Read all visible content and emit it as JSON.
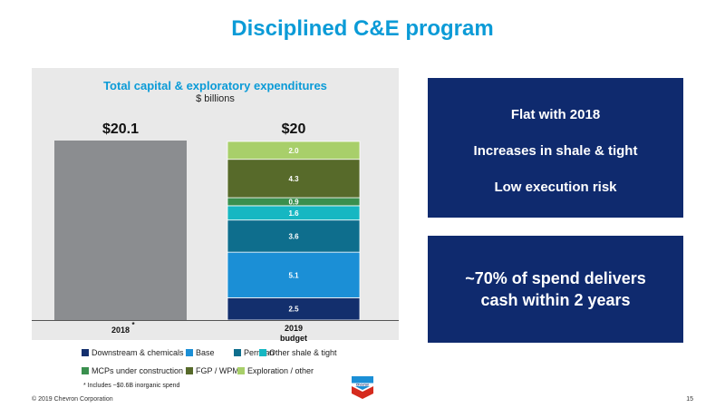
{
  "page": {
    "title": "Disciplined C&E program",
    "copyright": "© 2019 Chevron Corporation",
    "page_number": "15",
    "logo_text": "Chevron"
  },
  "chart_data": {
    "type": "bar",
    "title": "Total capital & exploratory expenditures",
    "subtitle": "$ billions",
    "categories": [
      "2018",
      "2019 budget"
    ],
    "category_marks": [
      "*",
      ""
    ],
    "totals": [
      "$20.1",
      "$20"
    ],
    "ylim": [
      0,
      20.1
    ],
    "bar_2018": {
      "value": 20.1,
      "color": "#8b8d90"
    },
    "series": [
      {
        "name": "Downstream & chemicals",
        "values": [
          null,
          2.5
        ],
        "label": "2.5",
        "color": "#132f6d"
      },
      {
        "name": "Base",
        "values": [
          null,
          5.1
        ],
        "label": "5.1",
        "color": "#1b8fd6"
      },
      {
        "name": "Permian",
        "values": [
          null,
          3.6
        ],
        "label": "3.6",
        "color": "#0e6e8d"
      },
      {
        "name": "Other shale & tight",
        "values": [
          null,
          1.6
        ],
        "label": "1.6",
        "color": "#16b7c2"
      },
      {
        "name": "MCPs under construction",
        "values": [
          null,
          0.9
        ],
        "label": "0.9",
        "color": "#3a8f4e"
      },
      {
        "name": "FGP / WPMP",
        "values": [
          null,
          4.3
        ],
        "label": "4.3",
        "color": "#576a2a"
      },
      {
        "name": "Exploration / other",
        "values": [
          null,
          2.0
        ],
        "label": "2.0",
        "color": "#a8cf6a"
      }
    ],
    "legend_placement": "bottom",
    "footnote": "* Includes ~$0.6B inorganic spend"
  },
  "callouts": {
    "box1": [
      "Flat with 2018",
      "Increases in shale & tight",
      "Low execution risk"
    ],
    "box2": [
      "~70% of spend delivers",
      "cash within 2 years"
    ]
  }
}
